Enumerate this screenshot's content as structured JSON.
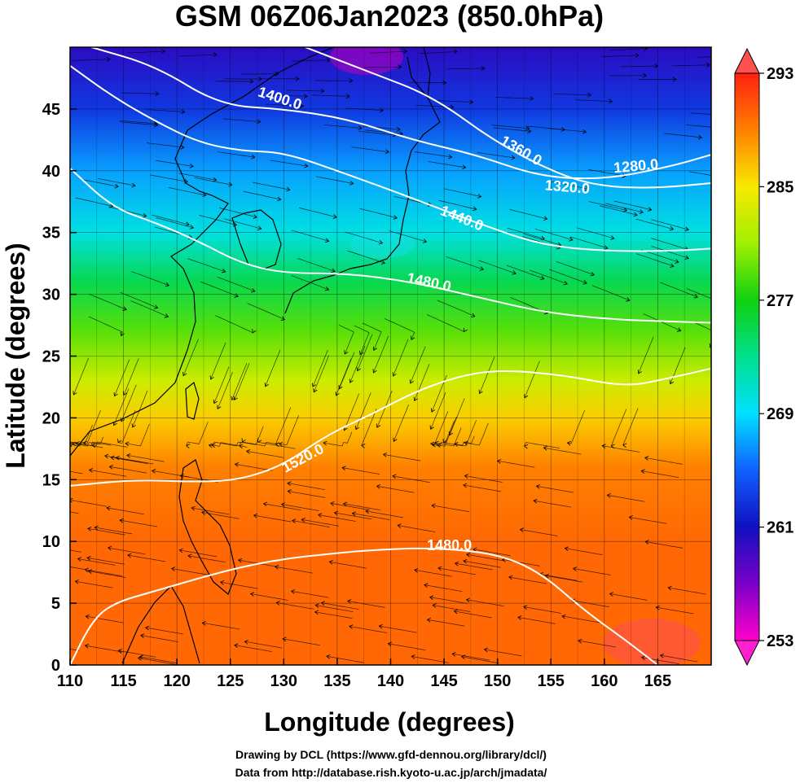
{
  "title": "GSM 06Z06Jan2023 (850.0hPa)",
  "credits": [
    "Drawing by DCL (https://www.gfd-dennou.org/library/dcl/)",
    "Data from http://database.rish.kyoto-u.ac.jp/arch/jmadata/"
  ],
  "chart_data": {
    "type": "heatmap",
    "xlabel": "Longitude (degrees)",
    "ylabel": "Latitude  (degrees)",
    "xlim": [
      110,
      170
    ],
    "ylim": [
      0,
      50
    ],
    "xticks": [
      110,
      115,
      120,
      125,
      130,
      135,
      140,
      145,
      150,
      155,
      160,
      165
    ],
    "yticks": [
      0,
      5,
      10,
      15,
      20,
      25,
      30,
      35,
      40,
      45
    ],
    "grid": true,
    "colorbar": {
      "min": 253,
      "max": 293,
      "tick_values": [
        253,
        261,
        269,
        277,
        285,
        293
      ],
      "stops": [
        {
          "value": 253,
          "color": "#ff00cc"
        },
        {
          "value": 257,
          "color": "#7a00c8"
        },
        {
          "value": 261,
          "color": "#1010c0"
        },
        {
          "value": 265,
          "color": "#1060ff"
        },
        {
          "value": 269,
          "color": "#00e0ff"
        },
        {
          "value": 273,
          "color": "#00e08c"
        },
        {
          "value": 277,
          "color": "#10d010"
        },
        {
          "value": 281,
          "color": "#a0f000"
        },
        {
          "value": 285,
          "color": "#f8e800"
        },
        {
          "value": 289,
          "color": "#ff8000"
        },
        {
          "value": 293,
          "color": "#ff2010"
        }
      ]
    },
    "temperature_bands": [
      {
        "lat": 50,
        "value": 260
      },
      {
        "lat": 45,
        "value": 263
      },
      {
        "lat": 40,
        "value": 267
      },
      {
        "lat": 35,
        "value": 270
      },
      {
        "lat": 31,
        "value": 275
      },
      {
        "lat": 27,
        "value": 279
      },
      {
        "lat": 23,
        "value": 283
      },
      {
        "lat": 20,
        "value": 286
      },
      {
        "lat": 16,
        "value": 289
      },
      {
        "lat": 10,
        "value": 290
      },
      {
        "lat": 0,
        "value": 290
      }
    ],
    "contour_labels": [
      {
        "text": "1400.0",
        "lon": 129.5,
        "lat": 45.5,
        "angle": 18
      },
      {
        "text": "1360.0",
        "lon": 152,
        "lat": 41.3,
        "angle": 30
      },
      {
        "text": "1280.0",
        "lon": 163,
        "lat": 40,
        "angle": -5
      },
      {
        "text": "1320.0",
        "lon": 156.5,
        "lat": 38.3,
        "angle": 5
      },
      {
        "text": "1440.0",
        "lon": 146.5,
        "lat": 35.8,
        "angle": 22
      },
      {
        "text": "1480.0",
        "lon": 143.5,
        "lat": 30.6,
        "angle": 12
      },
      {
        "text": "1520.0",
        "lon": 132,
        "lat": 16.4,
        "angle": -28
      },
      {
        "text": "1480.0",
        "lon": 145.5,
        "lat": 9.3,
        "angle": 0
      }
    ],
    "contours": [
      {
        "points": [
          [
            112,
            50
          ],
          [
            118,
            48.5
          ],
          [
            124,
            45.3
          ],
          [
            130,
            45
          ],
          [
            136,
            44.2
          ],
          [
            142,
            42.5
          ],
          [
            148,
            41.3
          ],
          [
            154,
            39.5
          ],
          [
            160,
            39.3
          ],
          [
            166,
            40.3
          ],
          [
            170,
            41.3
          ]
        ]
      },
      {
        "points": [
          [
            132,
            50
          ],
          [
            138,
            48
          ],
          [
            144,
            46
          ],
          [
            150,
            42.2
          ],
          [
            156,
            39.6
          ],
          [
            160,
            38.7
          ],
          [
            165,
            38.6
          ],
          [
            170,
            39
          ]
        ]
      },
      {
        "points": [
          [
            110,
            48.5
          ],
          [
            114,
            46
          ],
          [
            118,
            44
          ],
          [
            122,
            42.3
          ],
          [
            126,
            41.6
          ],
          [
            130,
            41.5
          ],
          [
            136,
            39.7
          ],
          [
            142,
            37.8
          ],
          [
            148,
            35.8
          ],
          [
            154,
            34
          ],
          [
            160,
            33.5
          ],
          [
            166,
            33.5
          ],
          [
            170,
            33.7
          ]
        ]
      },
      {
        "points": [
          [
            110,
            40.2
          ],
          [
            114,
            37
          ],
          [
            118,
            35.8
          ],
          [
            122,
            34.3
          ],
          [
            126,
            32.5
          ],
          [
            130,
            31.7
          ],
          [
            136,
            31.7
          ],
          [
            142,
            31
          ],
          [
            148,
            29.8
          ],
          [
            154,
            28.6
          ],
          [
            160,
            28
          ],
          [
            166,
            27.8
          ],
          [
            170,
            27.7
          ]
        ]
      },
      {
        "points": [
          [
            110,
            14.5
          ],
          [
            116,
            15
          ],
          [
            122,
            14.8
          ],
          [
            126,
            15
          ],
          [
            130,
            16.2
          ],
          [
            134,
            18.6
          ],
          [
            138,
            20.2
          ],
          [
            142,
            22
          ],
          [
            146,
            23.3
          ],
          [
            150,
            23.9
          ],
          [
            156,
            23.5
          ],
          [
            162,
            22.5
          ],
          [
            166,
            23.2
          ],
          [
            170,
            24
          ]
        ]
      },
      {
        "points": [
          [
            110,
            0
          ],
          [
            112,
            3.5
          ],
          [
            114,
            5
          ],
          [
            118,
            6
          ],
          [
            124,
            7.5
          ],
          [
            128,
            8.3
          ],
          [
            132,
            8.8
          ],
          [
            138,
            9.3
          ],
          [
            144,
            9.5
          ],
          [
            150,
            9
          ],
          [
            154,
            7.5
          ],
          [
            158,
            4.5
          ],
          [
            162,
            2
          ],
          [
            165,
            0
          ]
        ]
      }
    ]
  }
}
